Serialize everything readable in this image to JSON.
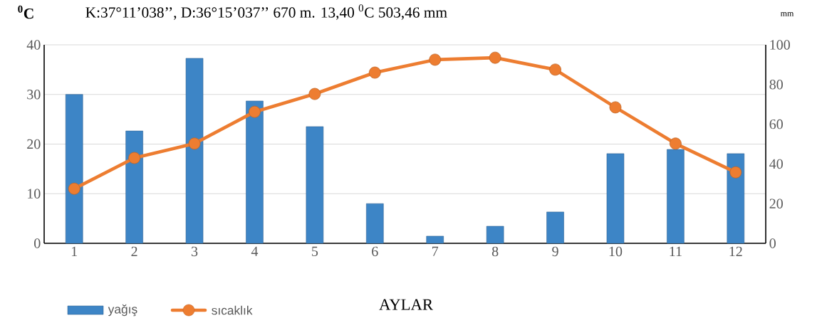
{
  "chart_data": {
    "type": "bar",
    "title": "K:37°11’038’’,  D:36°15’037’’     670 m.      13,40 $^{0}$C      503,46 mm",
    "ylabel": "$^{0}$C",
    "y2label": "mm",
    "xlabel": "AYLAR",
    "categories": [
      "1",
      "2",
      "3",
      "4",
      "5",
      "6",
      "7",
      "8",
      "9",
      "10",
      "11",
      "12"
    ],
    "series": [
      {
        "name": "yağış",
        "axis": "y2",
        "color": "#3d85c6",
        "values": [
          75,
          56.6,
          93.2,
          71.7,
          58.8,
          20,
          3.6,
          8.6,
          15.8,
          45.2,
          47.3,
          45.2
        ]
      },
      {
        "name": "sıcaklık",
        "type": "line",
        "axis": "y",
        "color": "#ed7d31",
        "marker": "circle",
        "values": [
          11.0,
          17.2,
          20.1,
          26.5,
          30.1,
          34.4,
          37.0,
          37.4,
          35.0,
          27.4,
          20.1,
          14.3
        ]
      }
    ],
    "ylim": [
      0,
      40
    ],
    "yticks": [
      0,
      10,
      20,
      30,
      40
    ],
    "y2lim": [
      0,
      100
    ],
    "y2ticks": [
      0,
      20,
      40,
      60,
      80,
      100
    ],
    "grid": "y",
    "legend": "bottom"
  }
}
